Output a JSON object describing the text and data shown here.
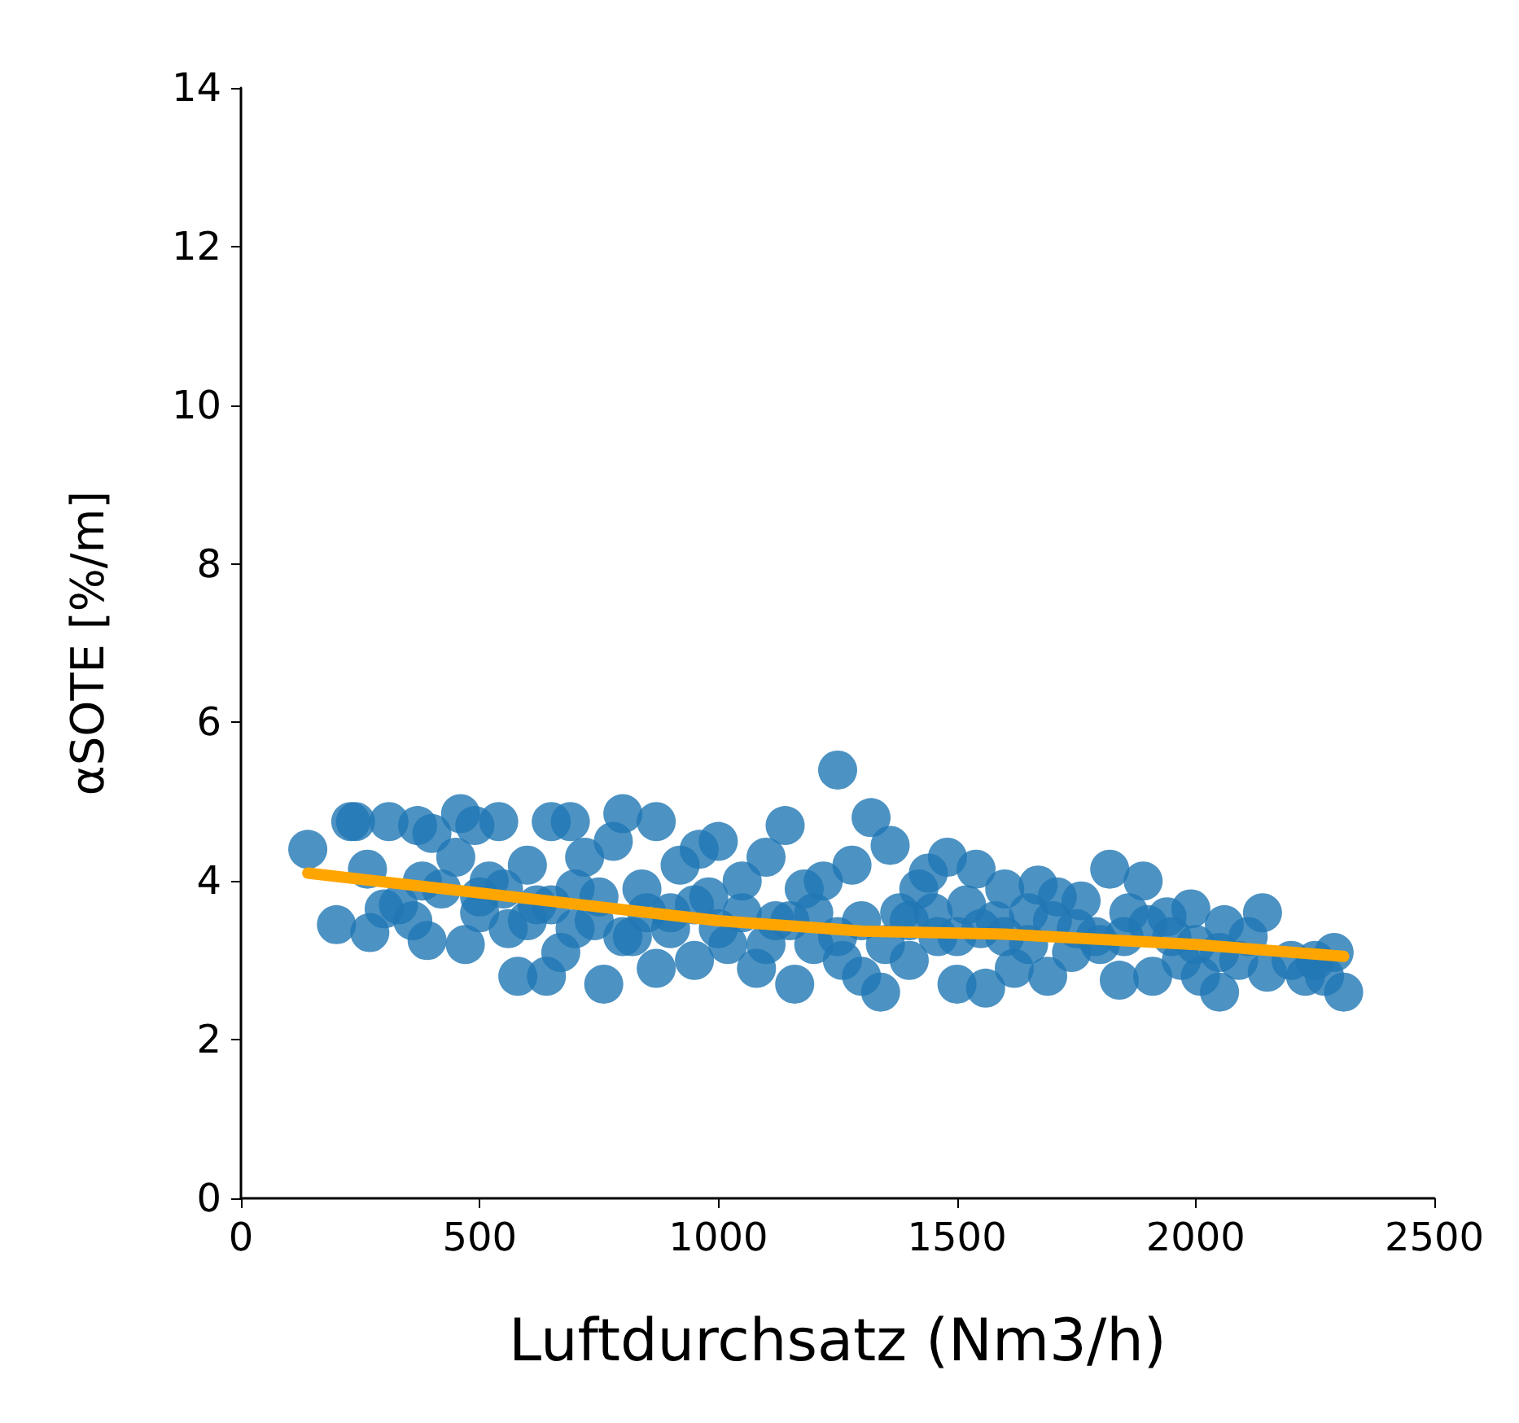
{
  "chart_data": {
    "type": "scatter",
    "xlabel": "Luftdurchsatz (Nm3/h)",
    "ylabel": "αSOTE [%/m]",
    "xlim": [
      0,
      2500
    ],
    "ylim": [
      0,
      14
    ],
    "xticks": [
      0,
      500,
      1000,
      1500,
      2000,
      2500
    ],
    "yticks": [
      0,
      2,
      4,
      6,
      8,
      10,
      12,
      14
    ],
    "grid": false,
    "marker": "circle",
    "series": [
      {
        "color": "#1f77b4",
        "x": [
          140,
          200,
          230,
          240,
          265,
          270,
          300,
          310,
          330,
          360,
          370,
          380,
          390,
          400,
          420,
          450,
          460,
          470,
          490,
          500,
          520,
          540,
          560,
          580,
          600,
          620,
          640,
          650,
          670,
          690,
          700,
          720,
          740,
          760,
          780,
          800,
          820,
          840,
          870,
          870,
          900,
          920,
          950,
          960,
          980,
          1000,
          1020,
          1050,
          1080,
          1100,
          1120,
          1140,
          1160,
          1180,
          1200,
          1220,
          1250,
          1260,
          1280,
          1300,
          1320,
          1340,
          1360,
          1380,
          1400,
          1420,
          1440,
          1460,
          1480,
          1500,
          1520,
          1540,
          1560,
          1580,
          1600,
          1620,
          1650,
          1670,
          1690,
          1710,
          1740,
          1760,
          1790,
          1820,
          1840,
          1860,
          1890,
          1910,
          1940,
          1970,
          1990,
          2010,
          2050,
          2060,
          2090,
          2110,
          2140,
          2150,
          2200,
          2230,
          2250,
          2270,
          2290,
          2310,
          500,
          550,
          600,
          650,
          700,
          750,
          800,
          850,
          900,
          950,
          1000,
          1050,
          1100,
          1150,
          1200,
          1250,
          1300,
          1350,
          1400,
          1450,
          1500,
          1550,
          1600,
          1650,
          1700,
          1750,
          1800,
          1850,
          1900,
          1950,
          2000,
          2050
        ],
        "values": [
          4.4,
          3.45,
          4.75,
          4.75,
          4.15,
          3.35,
          3.65,
          4.75,
          3.7,
          3.5,
          4.7,
          4.0,
          3.25,
          4.6,
          3.9,
          4.3,
          4.85,
          3.2,
          4.7,
          3.6,
          4.0,
          4.75,
          3.4,
          2.8,
          4.2,
          3.7,
          2.8,
          4.75,
          3.1,
          4.75,
          3.9,
          4.3,
          3.5,
          2.7,
          4.5,
          4.85,
          3.3,
          3.9,
          4.75,
          2.9,
          3.6,
          4.2,
          3.0,
          4.4,
          3.8,
          4.5,
          3.2,
          4.0,
          2.9,
          4.3,
          3.5,
          4.7,
          2.7,
          3.9,
          3.2,
          4.0,
          5.4,
          3.0,
          4.2,
          2.8,
          4.8,
          2.6,
          4.45,
          3.6,
          3.0,
          3.9,
          4.1,
          3.3,
          4.3,
          2.7,
          3.7,
          4.15,
          2.65,
          3.5,
          3.9,
          2.9,
          3.6,
          3.95,
          2.8,
          3.8,
          3.1,
          3.75,
          3.3,
          4.15,
          2.75,
          3.6,
          4.0,
          2.8,
          3.55,
          3.0,
          3.65,
          2.8,
          2.6,
          3.45,
          3.0,
          3.3,
          3.6,
          2.85,
          3.0,
          2.8,
          3.0,
          2.8,
          3.1,
          2.6,
          3.8,
          3.9,
          3.5,
          3.7,
          3.4,
          3.8,
          3.3,
          3.6,
          3.4,
          3.7,
          3.4,
          3.6,
          3.2,
          3.5,
          3.6,
          3.3,
          3.5,
          3.2,
          3.5,
          3.6,
          3.3,
          3.4,
          3.3,
          3.2,
          3.5,
          3.4,
          3.2,
          3.3,
          3.45,
          3.3,
          3.2,
          3.1
        ]
      },
      {
        "type": "line",
        "color": "#ffa500",
        "marker": "none",
        "line_style": "solid",
        "x": [
          140,
          500,
          1000,
          1300,
          1600,
          2000,
          2310
        ],
        "values": [
          4.1,
          3.85,
          3.5,
          3.37,
          3.33,
          3.2,
          3.05
        ]
      }
    ]
  }
}
